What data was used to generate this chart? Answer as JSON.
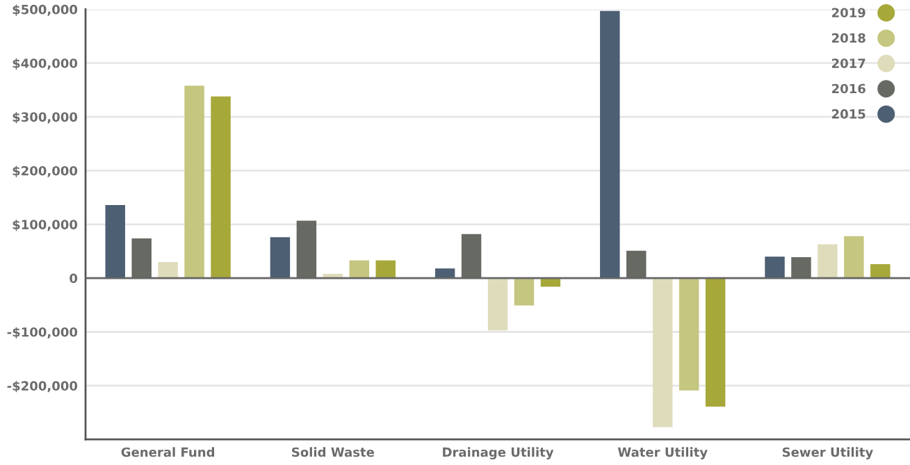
{
  "chart_data": {
    "type": "bar",
    "categories": [
      "General Fund",
      "Solid Waste",
      "Drainage Utility",
      "Water Utility",
      "Sewer Utility"
    ],
    "series": [
      {
        "name": "2015",
        "color": "#4d5f73",
        "values": [
          136000,
          76000,
          18000,
          497000,
          40000
        ]
      },
      {
        "name": "2016",
        "color": "#666a63",
        "values": [
          74000,
          107000,
          82000,
          51000,
          39000
        ]
      },
      {
        "name": "2017",
        "color": "#dfdcbb",
        "values": [
          30000,
          8000,
          -97000,
          -277000,
          63000
        ]
      },
      {
        "name": "2018",
        "color": "#c5c67f",
        "values": [
          358000,
          33000,
          -51000,
          -209000,
          78000
        ]
      },
      {
        "name": "2019",
        "color": "#a7a83a",
        "values": [
          338000,
          33000,
          -16000,
          -239000,
          26000
        ]
      }
    ],
    "ylim": [
      -300000,
      500000
    ],
    "yticks": [
      {
        "value": -200000,
        "label": "-$200,000"
      },
      {
        "value": -100000,
        "label": "-$100,000"
      },
      {
        "value": 0,
        "label": "0"
      },
      {
        "value": 100000,
        "label": "$100,000"
      },
      {
        "value": 200000,
        "label": "$200,000"
      },
      {
        "value": 300000,
        "label": "$300,000"
      },
      {
        "value": 400000,
        "label": "$400,000"
      },
      {
        "value": 500000,
        "label": "$500,000"
      }
    ],
    "ref_lines": [
      {
        "axis": "y",
        "value": 0,
        "color": "#666666"
      }
    ],
    "grid": "y",
    "legend": "top right",
    "marker": "circle"
  }
}
